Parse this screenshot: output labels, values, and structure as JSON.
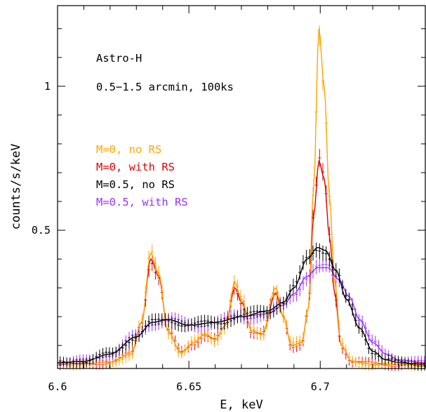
{
  "chart_data": {
    "type": "line",
    "title": "",
    "annotations": [
      "Astro-H",
      "0.5−1.5 arcmin, 100ks"
    ],
    "xlabel": "E, keV",
    "ylabel": "counts/s/keV",
    "xlim": [
      6.6,
      6.74
    ],
    "ylim": [
      0.02,
      1.28
    ],
    "x_ticks": [
      6.6,
      6.65,
      6.7
    ],
    "x_tick_labels": [
      "6.6",
      "6.65",
      "6.7"
    ],
    "y_ticks": [
      0.5,
      1.0
    ],
    "y_tick_labels": [
      "0.5",
      "1"
    ],
    "legend_position": "middle-left",
    "grid": false,
    "series": [
      {
        "name": "M=0, no RS",
        "color": "#FFA500",
        "points": [
          [
            6.6,
            0.035
          ],
          [
            6.61,
            0.036
          ],
          [
            6.62,
            0.042
          ],
          [
            6.628,
            0.07
          ],
          [
            6.632,
            0.18
          ],
          [
            6.6355,
            0.42
          ],
          [
            6.6385,
            0.35
          ],
          [
            6.642,
            0.15
          ],
          [
            6.647,
            0.075
          ],
          [
            6.652,
            0.11
          ],
          [
            6.656,
            0.14
          ],
          [
            6.66,
            0.12
          ],
          [
            6.664,
            0.17
          ],
          [
            6.6675,
            0.32
          ],
          [
            6.67,
            0.26
          ],
          [
            6.674,
            0.15
          ],
          [
            6.678,
            0.14
          ],
          [
            6.683,
            0.3
          ],
          [
            6.686,
            0.2
          ],
          [
            6.689,
            0.1
          ],
          [
            6.693,
            0.11
          ],
          [
            6.6955,
            0.23
          ],
          [
            6.6975,
            0.65
          ],
          [
            6.6995,
            1.2
          ],
          [
            6.7015,
            1.0
          ],
          [
            6.7035,
            0.62
          ],
          [
            6.7055,
            0.32
          ],
          [
            6.708,
            0.1
          ],
          [
            6.712,
            0.045
          ],
          [
            6.72,
            0.035
          ],
          [
            6.74,
            0.033
          ]
        ]
      },
      {
        "name": "M=0, with RS",
        "color": "#E00000",
        "points": [
          [
            6.6,
            0.035
          ],
          [
            6.61,
            0.036
          ],
          [
            6.62,
            0.042
          ],
          [
            6.628,
            0.07
          ],
          [
            6.632,
            0.18
          ],
          [
            6.6355,
            0.4
          ],
          [
            6.6385,
            0.34
          ],
          [
            6.642,
            0.15
          ],
          [
            6.647,
            0.075
          ],
          [
            6.652,
            0.11
          ],
          [
            6.656,
            0.14
          ],
          [
            6.66,
            0.12
          ],
          [
            6.664,
            0.17
          ],
          [
            6.6675,
            0.3
          ],
          [
            6.67,
            0.25
          ],
          [
            6.674,
            0.15
          ],
          [
            6.678,
            0.14
          ],
          [
            6.683,
            0.28
          ],
          [
            6.686,
            0.2
          ],
          [
            6.689,
            0.1
          ],
          [
            6.693,
            0.11
          ],
          [
            6.6955,
            0.23
          ],
          [
            6.6975,
            0.55
          ],
          [
            6.6995,
            0.74
          ],
          [
            6.7015,
            0.68
          ],
          [
            6.7035,
            0.48
          ],
          [
            6.7055,
            0.28
          ],
          [
            6.708,
            0.1
          ],
          [
            6.712,
            0.045
          ],
          [
            6.72,
            0.035
          ],
          [
            6.74,
            0.033
          ]
        ]
      },
      {
        "name": "M=0.5, no RS",
        "color": "#000000",
        "points": [
          [
            6.6,
            0.04
          ],
          [
            6.61,
            0.045
          ],
          [
            6.62,
            0.07
          ],
          [
            6.63,
            0.13
          ],
          [
            6.636,
            0.18
          ],
          [
            6.642,
            0.19
          ],
          [
            6.65,
            0.17
          ],
          [
            6.66,
            0.18
          ],
          [
            6.67,
            0.2
          ],
          [
            6.68,
            0.22
          ],
          [
            6.686,
            0.25
          ],
          [
            6.69,
            0.3
          ],
          [
            6.695,
            0.4
          ],
          [
            6.699,
            0.44
          ],
          [
            6.702,
            0.43
          ],
          [
            6.706,
            0.36
          ],
          [
            6.71,
            0.26
          ],
          [
            6.715,
            0.16
          ],
          [
            6.72,
            0.08
          ],
          [
            6.725,
            0.05
          ],
          [
            6.73,
            0.04
          ],
          [
            6.74,
            0.035
          ]
        ]
      },
      {
        "name": "M=0.5, with RS",
        "color": "#9B30FF",
        "points": [
          [
            6.6,
            0.04
          ],
          [
            6.61,
            0.045
          ],
          [
            6.62,
            0.07
          ],
          [
            6.63,
            0.13
          ],
          [
            6.636,
            0.18
          ],
          [
            6.642,
            0.19
          ],
          [
            6.65,
            0.17
          ],
          [
            6.66,
            0.18
          ],
          [
            6.67,
            0.2
          ],
          [
            6.68,
            0.21
          ],
          [
            6.686,
            0.24
          ],
          [
            6.69,
            0.28
          ],
          [
            6.695,
            0.34
          ],
          [
            6.699,
            0.37
          ],
          [
            6.703,
            0.37
          ],
          [
            6.707,
            0.33
          ],
          [
            6.711,
            0.27
          ],
          [
            6.715,
            0.19
          ],
          [
            6.72,
            0.11
          ],
          [
            6.725,
            0.07
          ],
          [
            6.73,
            0.05
          ],
          [
            6.74,
            0.04
          ]
        ]
      }
    ]
  }
}
